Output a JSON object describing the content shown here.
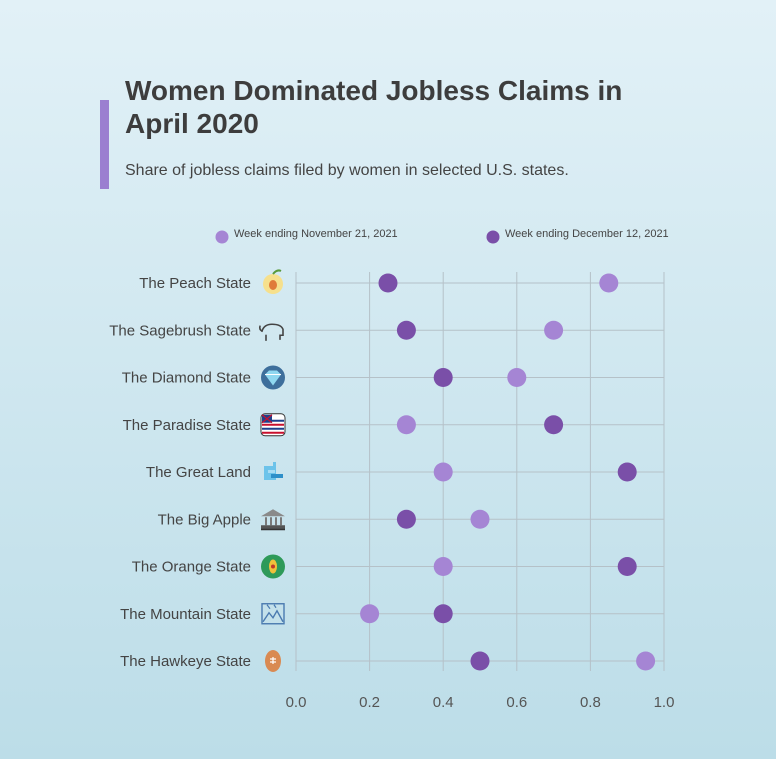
{
  "title": "Women Dominated Jobless Claims in April 2020",
  "subtitle": "Share of jobless claims filed by women in selected U.S. states.",
  "colors": {
    "accent": "#9b7fd0",
    "series1": "#a585d4",
    "series2": "#7a4fa8"
  },
  "chart_data": {
    "type": "scatter",
    "title": "Women Dominated Jobless Claims in April 2020",
    "subtitle": "Share of jobless claims filed by women in selected U.S. states.",
    "xlabel": "",
    "ylabel": "",
    "xlim": [
      0,
      1
    ],
    "x_ticks": [
      "0.0",
      "0.2",
      "0.4",
      "0.6",
      "0.8",
      "1.0"
    ],
    "grid": true,
    "legend_position": "top",
    "categories": [
      "The Peach State",
      "The Sagebrush State",
      "The Diamond State",
      "The Paradise State",
      "The Great Land",
      "The Big Apple",
      "The Orange State",
      "The Mountain State",
      "The Hawkeye State"
    ],
    "category_icons": [
      "peach-icon",
      "bison-icon",
      "diamond-icon",
      "hawaii-flag-icon",
      "alaska-icon",
      "courthouse-icon",
      "orange-icon",
      "mountain-map-icon",
      "football-icon"
    ],
    "series": [
      {
        "name": "Week ending November 21, 2021",
        "color": "#a585d4",
        "values": [
          0.85,
          0.7,
          0.6,
          0.3,
          0.4,
          0.5,
          0.4,
          0.2,
          0.95
        ]
      },
      {
        "name": "Week ending December 12, 2021",
        "color": "#7a4fa8",
        "values": [
          0.25,
          0.3,
          0.4,
          0.7,
          0.9,
          0.3,
          0.9,
          0.4,
          0.5
        ]
      }
    ]
  }
}
